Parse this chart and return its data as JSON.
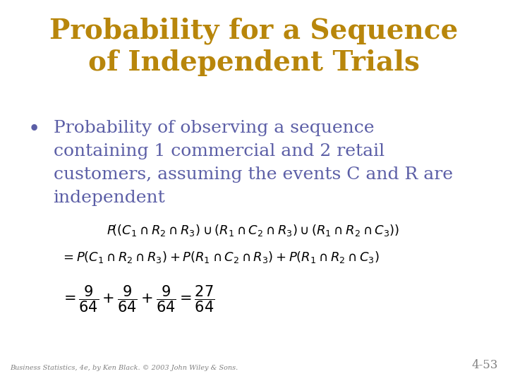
{
  "title_line1": "Probability for a Sequence",
  "title_line2": "of Independent Trials",
  "title_color": "#B8860B",
  "title_fontsize": 28,
  "bullet_text_lines": [
    "Probability of observing a sequence",
    "containing 1 commercial and 2 retail",
    "customers, assuming the events C and R are",
    "independent"
  ],
  "bullet_color": "#5B5EA6",
  "bullet_fontsize": 18,
  "formula_line1": "$P\\!\\left((C_1 \\cap R_2 \\cap R_3) \\cup (R_1 \\cap C_2 \\cap R_3) \\cup (R_1 \\cap R_2 \\cap C_3)\\right)$",
  "formula_line2": "$= P(C_1 \\cap R_2 \\cap R_3) + P(R_1 \\cap C_2 \\cap R_3) + P(R_1 \\cap R_2 \\cap C_3)$",
  "formula_line3": "$= \\dfrac{9}{64} + \\dfrac{9}{64} + \\dfrac{9}{64} = \\dfrac{27}{64}$",
  "formula_color": "#000000",
  "formula_fontsize": 13,
  "footer_text": "Business Statistics, 4e, by Ken Black. © 2003 John Wiley & Sons.",
  "footer_color": "#808080",
  "footer_fontsize": 7,
  "page_number": "4-53",
  "page_color": "#808080",
  "page_fontsize": 12,
  "bg_color": "#FFFFFF"
}
